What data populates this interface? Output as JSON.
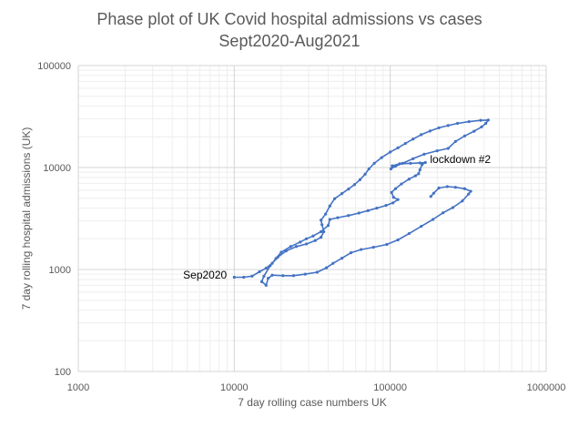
{
  "chart_data": {
    "type": "line",
    "title_lines": [
      "Phase plot of UK Covid hospital admissions vs cases",
      "Sept2020-Aug2021"
    ],
    "xlabel": "7 day rolling case numbers UK",
    "ylabel": "7 day rolling hospital admissions (UK)",
    "x_scale": "log",
    "y_scale": "log",
    "xlim": [
      1000,
      1000000
    ],
    "ylim": [
      100,
      100000
    ],
    "x_ticks": [
      "1000",
      "10000",
      "100000",
      "1000000"
    ],
    "y_ticks": [
      "100",
      "1000",
      "10000",
      "100000"
    ],
    "grid": "major and minor",
    "series_color": "#4472C4",
    "annotations": [
      {
        "text": "Sep2020",
        "x": 4700,
        "y": 880
      },
      {
        "text": "lockdown #2",
        "x": 180000,
        "y": 12000
      }
    ],
    "series": [
      {
        "points": [
          [
            10000,
            840
          ],
          [
            11500,
            840
          ],
          [
            13000,
            860
          ],
          [
            14500,
            950
          ],
          [
            16000,
            1030
          ],
          [
            17500,
            1150
          ],
          [
            19000,
            1320
          ],
          [
            21500,
            1520
          ],
          [
            25000,
            1680
          ],
          [
            29000,
            1780
          ],
          [
            33000,
            1920
          ],
          [
            36000,
            2070
          ],
          [
            37500,
            2350
          ],
          [
            36500,
            2750
          ],
          [
            36000,
            3050
          ],
          [
            38500,
            3500
          ],
          [
            41000,
            4200
          ],
          [
            44000,
            4950
          ],
          [
            49000,
            5550
          ],
          [
            54000,
            6150
          ],
          [
            59000,
            6800
          ],
          [
            64000,
            7600
          ],
          [
            69000,
            8600
          ],
          [
            73000,
            9700
          ],
          [
            79000,
            11000
          ],
          [
            88000,
            12500
          ],
          [
            100000,
            14200
          ],
          [
            112000,
            15600
          ],
          [
            125000,
            17200
          ],
          [
            140000,
            19000
          ],
          [
            158000,
            21000
          ],
          [
            180000,
            22800
          ],
          [
            205000,
            24500
          ],
          [
            235000,
            25800
          ],
          [
            270000,
            27100
          ],
          [
            320000,
            28200
          ],
          [
            380000,
            29000
          ],
          [
            425000,
            29200
          ],
          [
            410000,
            27100
          ],
          [
            385000,
            25000
          ],
          [
            345000,
            22700
          ],
          [
            300000,
            20400
          ],
          [
            262000,
            18000
          ],
          [
            235000,
            15400
          ],
          [
            200000,
            14600
          ],
          [
            165000,
            13500
          ],
          [
            140000,
            12200
          ],
          [
            120000,
            11000
          ],
          [
            108000,
            10300
          ],
          [
            101000,
            9700
          ],
          [
            103000,
            10400
          ],
          [
            115000,
            10900
          ],
          [
            135000,
            11000
          ],
          [
            155000,
            11100
          ],
          [
            168000,
            11200
          ],
          [
            160000,
            10700
          ],
          [
            155000,
            9500
          ],
          [
            152000,
            8700
          ],
          [
            145000,
            8300
          ],
          [
            132000,
            7700
          ],
          [
            118000,
            6900
          ],
          [
            108000,
            6200
          ],
          [
            102000,
            5700
          ],
          [
            105000,
            5100
          ],
          [
            112000,
            4850
          ],
          [
            104000,
            4500
          ],
          [
            94000,
            4250
          ],
          [
            82000,
            4000
          ],
          [
            72000,
            3780
          ],
          [
            63000,
            3580
          ],
          [
            54000,
            3380
          ],
          [
            46000,
            3220
          ],
          [
            41000,
            3100
          ],
          [
            40000,
            2700
          ],
          [
            36000,
            2350
          ],
          [
            32000,
            2130
          ],
          [
            29000,
            2000
          ],
          [
            26500,
            1860
          ],
          [
            23000,
            1680
          ],
          [
            20000,
            1480
          ],
          [
            18500,
            1280
          ],
          [
            17000,
            1090
          ],
          [
            15500,
            860
          ],
          [
            15000,
            760
          ],
          [
            16000,
            700
          ],
          [
            16500,
            820
          ],
          [
            17500,
            880
          ],
          [
            20500,
            870
          ],
          [
            24000,
            870
          ],
          [
            28500,
            900
          ],
          [
            34000,
            940
          ],
          [
            39000,
            1040
          ],
          [
            43000,
            1150
          ],
          [
            49000,
            1290
          ],
          [
            56000,
            1460
          ],
          [
            65000,
            1570
          ],
          [
            78000,
            1650
          ],
          [
            95000,
            1760
          ],
          [
            112000,
            1950
          ],
          [
            132000,
            2250
          ],
          [
            158000,
            2650
          ],
          [
            188000,
            3100
          ],
          [
            218000,
            3600
          ],
          [
            252000,
            4050
          ],
          [
            290000,
            4700
          ],
          [
            318000,
            5500
          ],
          [
            328000,
            5850
          ],
          [
            300000,
            6200
          ],
          [
            262000,
            6400
          ],
          [
            232000,
            6500
          ],
          [
            205000,
            6300
          ],
          [
            190000,
            5600
          ],
          [
            182000,
            5200
          ]
        ]
      }
    ]
  }
}
